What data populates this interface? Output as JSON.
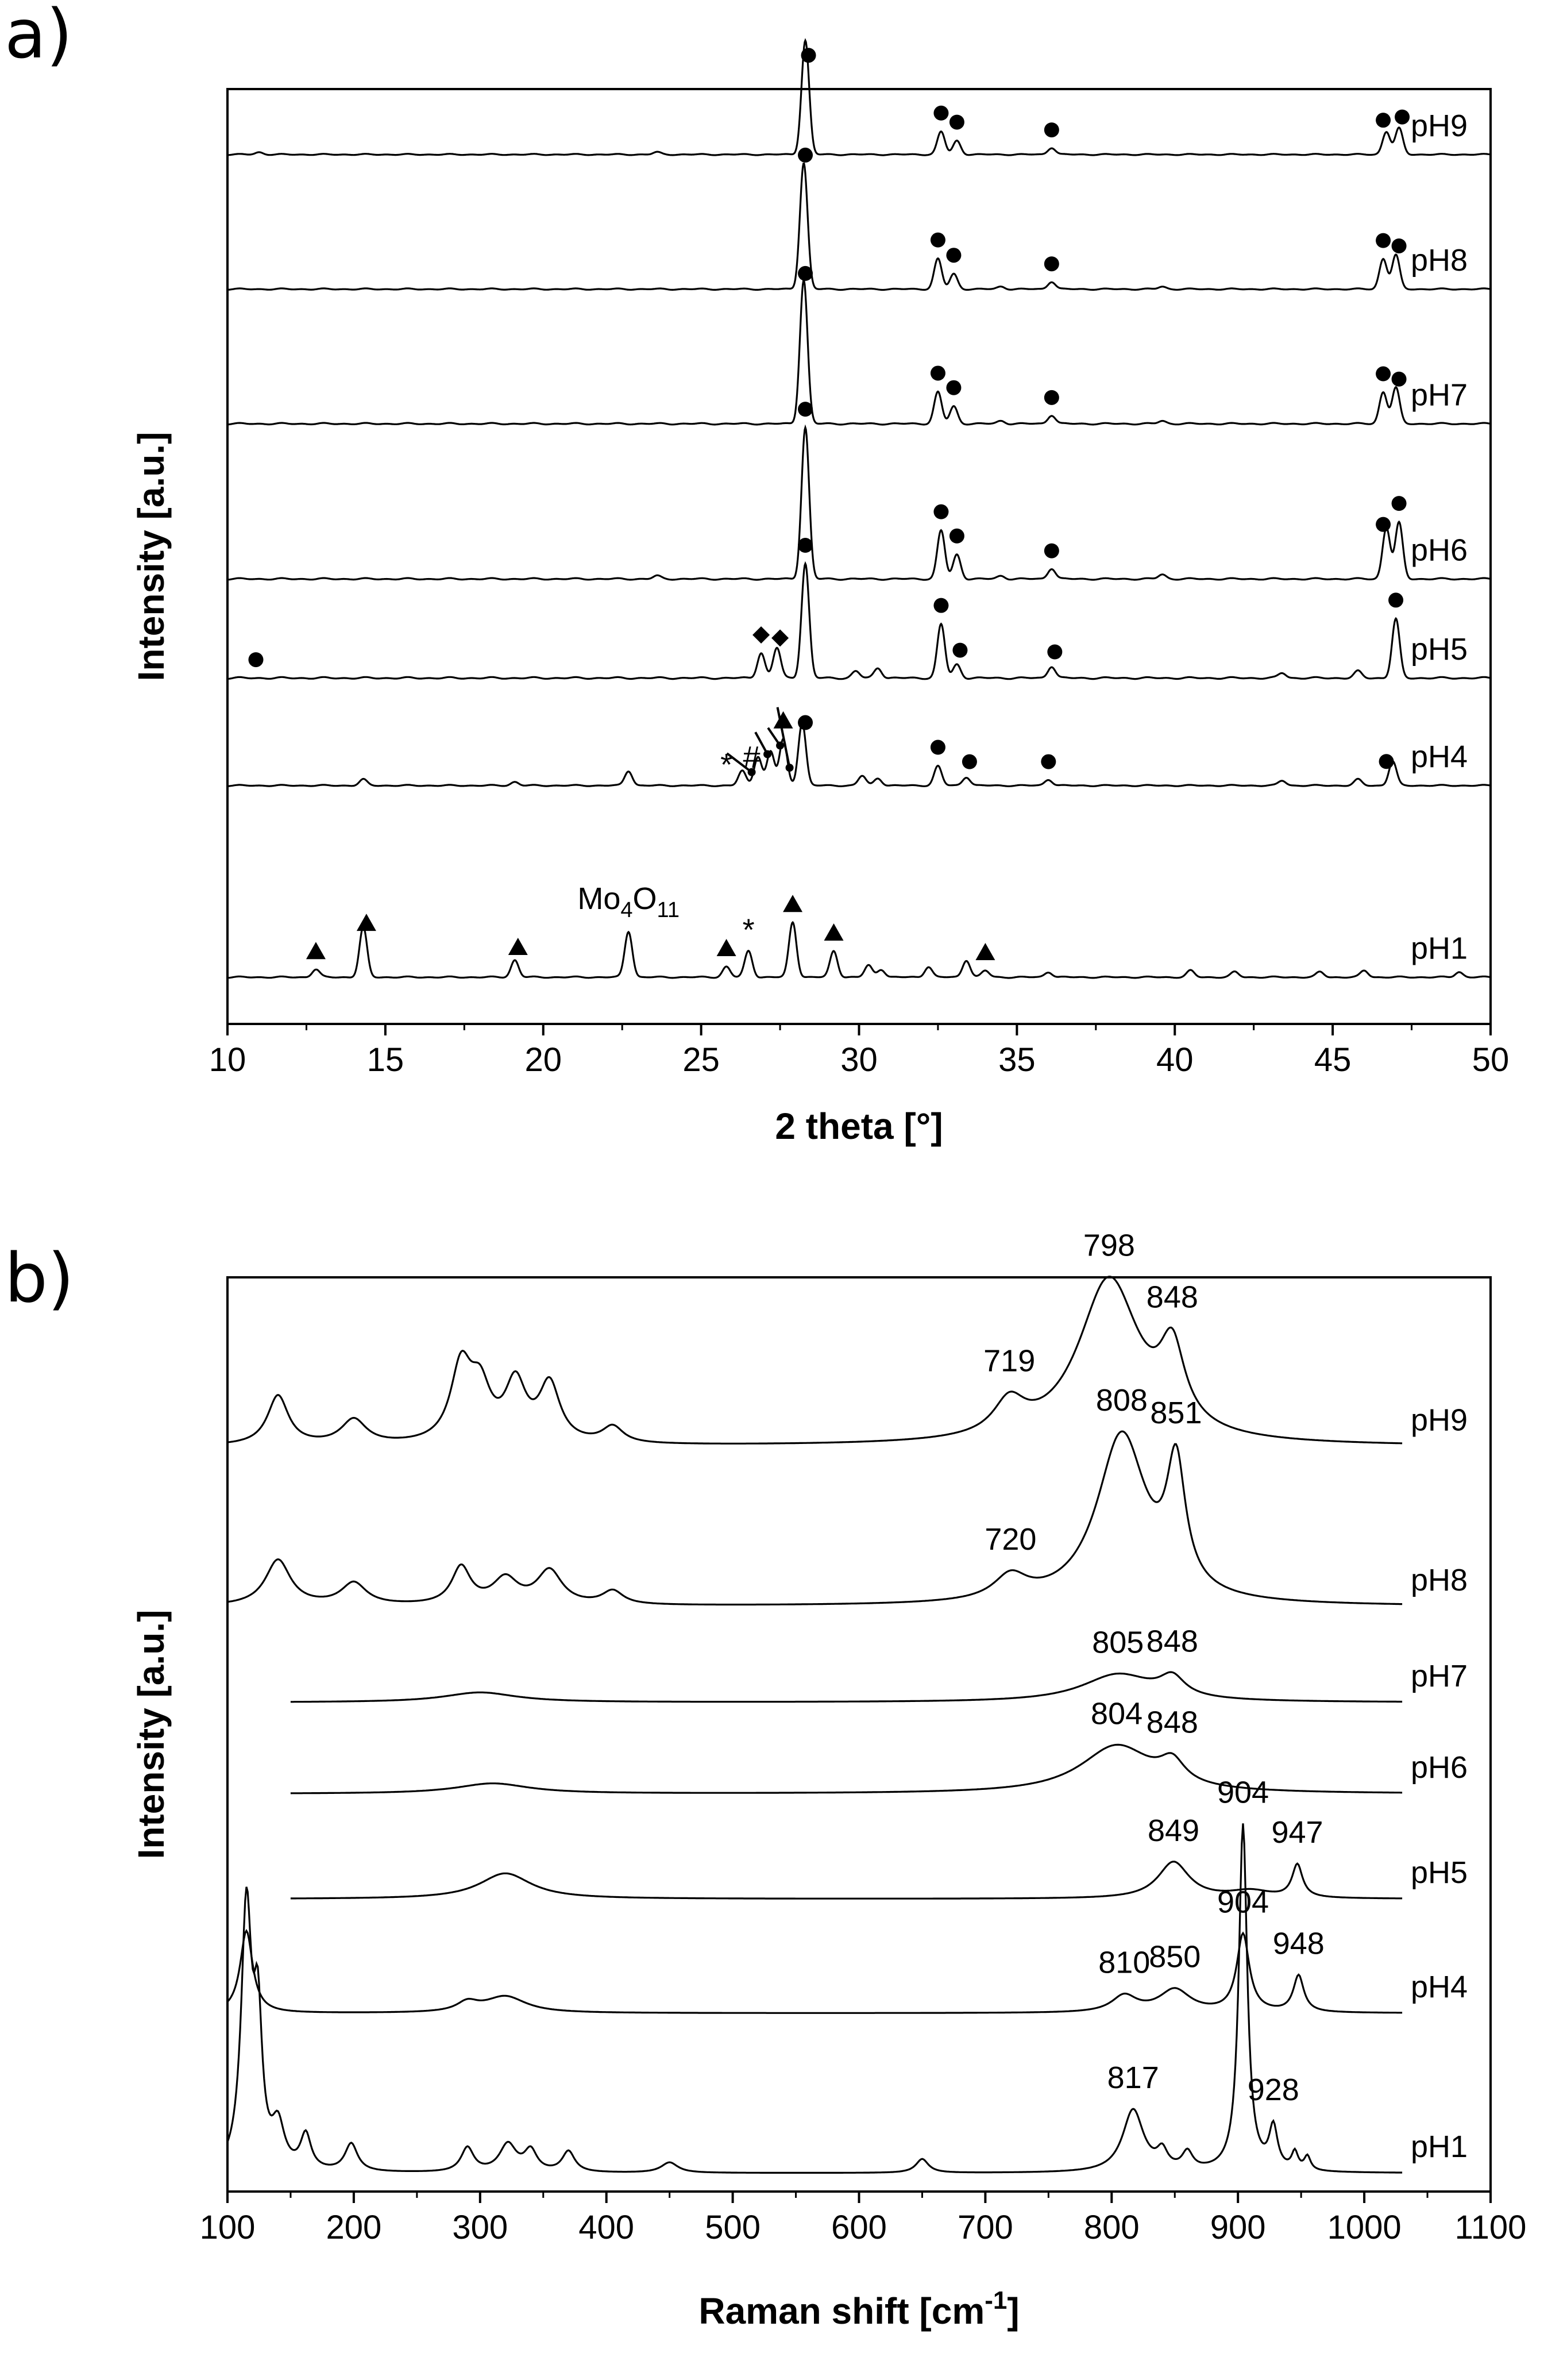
{
  "panels": {
    "a": {
      "letter": "a)"
    },
    "b": {
      "letter": "b)"
    }
  },
  "chart_data": [
    {
      "type": "line",
      "title": "",
      "xlabel": "2 theta [°]",
      "ylabel": "Intensity [a.u.]",
      "xlim": [
        10,
        50
      ],
      "xticks": [
        10,
        15,
        20,
        25,
        30,
        35,
        40,
        45,
        50
      ],
      "yticks": [],
      "annotation": {
        "text_main": "Mo",
        "sub1": "4",
        "text_mid": "O",
        "sub2": "11",
        "x": 22.7,
        "series": "pH1"
      },
      "peak_sigma": 0.12,
      "series": [
        {
          "name": "pH9",
          "label": "pH9",
          "offset": 0.93,
          "scale": 0.122,
          "peaks": [
            [
              28.3,
              1.0
            ],
            [
              32.6,
              0.2
            ],
            [
              33.1,
              0.12
            ],
            [
              36.1,
              0.06
            ],
            [
              46.7,
              0.2
            ],
            [
              47.1,
              0.23
            ],
            [
              11.0,
              0.02
            ],
            [
              23.6,
              0.02
            ]
          ]
        },
        {
          "name": "pH8",
          "label": "pH8",
          "offset": 0.786,
          "scale": 0.135,
          "peaks": [
            [
              28.25,
              1.0
            ],
            [
              32.5,
              0.24
            ],
            [
              33.0,
              0.12
            ],
            [
              36.1,
              0.06
            ],
            [
              46.6,
              0.24
            ],
            [
              47.0,
              0.27
            ],
            [
              39.6,
              0.02
            ],
            [
              34.5,
              0.02
            ]
          ]
        },
        {
          "name": "pH7",
          "label": "pH7",
          "offset": 0.642,
          "scale": 0.154,
          "peaks": [
            [
              28.25,
              1.0
            ],
            [
              32.5,
              0.22
            ],
            [
              33.0,
              0.12
            ],
            [
              36.1,
              0.06
            ],
            [
              46.6,
              0.22
            ],
            [
              47.0,
              0.25
            ],
            [
              39.6,
              0.02
            ],
            [
              34.5,
              0.02
            ]
          ]
        },
        {
          "name": "pH6",
          "label": "pH6",
          "offset": 0.476,
          "scale": 0.162,
          "peaks": [
            [
              28.3,
              1.0
            ],
            [
              32.6,
              0.32
            ],
            [
              33.1,
              0.16
            ],
            [
              36.1,
              0.07
            ],
            [
              46.7,
              0.34
            ],
            [
              47.1,
              0.37
            ],
            [
              39.6,
              0.03
            ],
            [
              34.5,
              0.02
            ],
            [
              23.6,
              0.02
            ]
          ]
        },
        {
          "name": "pH5",
          "label": "pH5",
          "offset": 0.37,
          "scale": 0.18,
          "peaks": [
            [
              28.3,
              0.68
            ],
            [
              32.6,
              0.32
            ],
            [
              33.1,
              0.08
            ],
            [
              36.1,
              0.07
            ],
            [
              47.0,
              0.35
            ],
            [
              26.9,
              0.15
            ],
            [
              27.4,
              0.18
            ],
            [
              30.6,
              0.06
            ],
            [
              29.9,
              0.04
            ],
            [
              43.4,
              0.03
            ],
            [
              45.8,
              0.04
            ]
          ]
        },
        {
          "name": "pH4",
          "label": "pH4",
          "offset": 0.255,
          "scale": 0.13,
          "peaks": [
            [
              28.2,
              0.52
            ],
            [
              27.6,
              0.38
            ],
            [
              27.2,
              0.28
            ],
            [
              26.8,
              0.24
            ],
            [
              26.3,
              0.12
            ],
            [
              22.7,
              0.12
            ],
            [
              32.5,
              0.16
            ],
            [
              33.4,
              0.07
            ],
            [
              36.0,
              0.05
            ],
            [
              46.9,
              0.2
            ],
            [
              14.3,
              0.05
            ],
            [
              19.1,
              0.03
            ],
            [
              30.1,
              0.08
            ],
            [
              30.6,
              0.06
            ],
            [
              43.4,
              0.04
            ],
            [
              45.8,
              0.05
            ]
          ]
        },
        {
          "name": "pH1",
          "label": "pH1",
          "offset": 0.05,
          "scale": 0.14,
          "peaks": [
            [
              12.8,
              0.06
            ],
            [
              14.3,
              0.38
            ],
            [
              19.1,
              0.13
            ],
            [
              22.7,
              0.35
            ],
            [
              25.8,
              0.08
            ],
            [
              26.5,
              0.2
            ],
            [
              27.9,
              0.42
            ],
            [
              29.2,
              0.2
            ],
            [
              30.3,
              0.09
            ],
            [
              30.7,
              0.06
            ],
            [
              32.2,
              0.08
            ],
            [
              33.4,
              0.13
            ],
            [
              34.0,
              0.05
            ],
            [
              36.0,
              0.04
            ],
            [
              40.5,
              0.05
            ],
            [
              41.9,
              0.04
            ],
            [
              44.6,
              0.04
            ],
            [
              46.0,
              0.05
            ],
            [
              49.0,
              0.04
            ]
          ]
        }
      ],
      "markers": [
        {
          "series": "pH9",
          "shape": "circle",
          "x": [
            28.4,
            32.6,
            33.1,
            36.1,
            46.6,
            47.2
          ]
        },
        {
          "series": "pH8",
          "shape": "circle",
          "x": [
            28.3,
            32.5,
            33.0,
            36.1,
            46.6,
            47.1
          ]
        },
        {
          "series": "pH7",
          "shape": "circle",
          "x": [
            28.3,
            32.5,
            33.0,
            36.1,
            46.6,
            47.1
          ]
        },
        {
          "series": "pH6",
          "shape": "circle",
          "x": [
            28.3,
            32.6,
            33.1,
            36.1,
            46.6,
            47.1
          ]
        },
        {
          "series": "pH5",
          "shape": "circle",
          "x": [
            10.9,
            28.3,
            32.6,
            33.2,
            36.2,
            47.0
          ]
        },
        {
          "series": "pH5",
          "shape": "diamond",
          "x": [
            26.9,
            27.5
          ]
        },
        {
          "series": "pH4",
          "shape": "circle",
          "x": [
            28.3,
            32.5,
            33.5,
            36.0,
            46.7
          ]
        },
        {
          "series": "pH4",
          "shape": "triangle",
          "x": [
            27.6
          ]
        },
        {
          "series": "pH4",
          "shape": "text",
          "text": "*",
          "x": [
            25.8
          ]
        },
        {
          "series": "pH4",
          "shape": "text",
          "text": "#",
          "x": [
            26.6
          ]
        },
        {
          "series": "pH1",
          "shape": "triangle",
          "x": [
            12.8,
            14.4,
            19.2,
            25.8,
            27.9,
            29.2,
            34.0
          ]
        },
        {
          "series": "pH1",
          "shape": "text",
          "text": "*",
          "x": [
            26.5
          ]
        }
      ]
    },
    {
      "type": "line",
      "title": "",
      "xlabel": "Raman shift [cm",
      "xlabel_sup": "-1",
      "xlabel_end": "]",
      "ylabel": "Intensity [a.u.]",
      "xlim": [
        100,
        1100
      ],
      "xticks": [
        100,
        200,
        300,
        400,
        500,
        600,
        700,
        800,
        900,
        1000,
        1100
      ],
      "yticks": [],
      "series": [
        {
          "name": "pH9",
          "label": "pH9",
          "x_start": 100,
          "x_end": 1030,
          "offset": 0.815,
          "scale": 0.18,
          "peaks": [
            [
              798,
              1.0,
              30
            ],
            [
              848,
              0.45,
              12
            ],
            [
              719,
              0.2,
              15
            ],
            [
              140,
              0.3,
              10
            ],
            [
              200,
              0.15,
              12
            ],
            [
              285,
              0.45,
              10
            ],
            [
              300,
              0.3,
              10
            ],
            [
              328,
              0.35,
              10
            ],
            [
              355,
              0.35,
              10
            ],
            [
              405,
              0.1,
              10
            ]
          ]
        },
        {
          "name": "pH8",
          "label": "pH8",
          "x_start": 100,
          "x_end": 1030,
          "offset": 0.64,
          "scale": 0.185,
          "peaks": [
            [
              808,
              1.0,
              24
            ],
            [
              851,
              0.72,
              9
            ],
            [
              720,
              0.14,
              16
            ],
            [
              140,
              0.27,
              12
            ],
            [
              200,
              0.13,
              12
            ],
            [
              285,
              0.22,
              9
            ],
            [
              320,
              0.15,
              12
            ],
            [
              355,
              0.2,
              12
            ],
            [
              405,
              0.08,
              10
            ]
          ]
        },
        {
          "name": "pH7",
          "label": "pH7",
          "x_start": 150,
          "x_end": 1030,
          "offset": 0.535,
          "scale": 0.06,
          "peaks": [
            [
              805,
              0.5,
              35
            ],
            [
              848,
              0.35,
              12
            ],
            [
              300,
              0.18,
              35
            ]
          ]
        },
        {
          "name": "pH6",
          "label": "pH6",
          "x_start": 150,
          "x_end": 1030,
          "offset": 0.435,
          "scale": 0.08,
          "peaks": [
            [
              804,
              0.65,
              35
            ],
            [
              848,
              0.3,
              12
            ],
            [
              310,
              0.14,
              35
            ]
          ]
        },
        {
          "name": "pH5",
          "label": "pH5",
          "x_start": 150,
          "x_end": 1030,
          "offset": 0.32,
          "scale": 0.08,
          "peaks": [
            [
              849,
              0.5,
              15
            ],
            [
              947,
              0.45,
              5
            ],
            [
              320,
              0.35,
              25
            ],
            [
              910,
              0.1,
              20
            ]
          ]
        },
        {
          "name": "pH4",
          "label": "pH4",
          "x_start": 100,
          "x_end": 1030,
          "offset": 0.195,
          "scale": 0.1,
          "peaks": [
            [
              115,
              0.9,
              6
            ],
            [
              904,
              0.85,
              6
            ],
            [
              948,
              0.4,
              5
            ],
            [
              850,
              0.25,
              15
            ],
            [
              810,
              0.18,
              12
            ],
            [
              320,
              0.18,
              20
            ],
            [
              290,
              0.1,
              10
            ]
          ]
        },
        {
          "name": "pH1",
          "label": "pH1",
          "x_start": 100,
          "x_end": 1030,
          "offset": 0.02,
          "scale": 0.38,
          "peaks": [
            [
              115,
              0.75,
              5
            ],
            [
              124,
              0.4,
              4
            ],
            [
              140,
              0.12,
              6
            ],
            [
              162,
              0.1,
              5
            ],
            [
              198,
              0.08,
              6
            ],
            [
              290,
              0.07,
              6
            ],
            [
              322,
              0.08,
              8
            ],
            [
              340,
              0.06,
              6
            ],
            [
              370,
              0.06,
              6
            ],
            [
              450,
              0.03,
              8
            ],
            [
              650,
              0.04,
              6
            ],
            [
              817,
              0.18,
              10
            ],
            [
              840,
              0.05,
              5
            ],
            [
              860,
              0.05,
              5
            ],
            [
              904,
              1.0,
              4
            ],
            [
              928,
              0.12,
              4
            ],
            [
              945,
              0.05,
              3
            ],
            [
              955,
              0.04,
              3
            ]
          ]
        }
      ],
      "peak_labels": [
        {
          "series": "pH9",
          "texts": [
            "719",
            "798",
            "848"
          ],
          "x": [
            719,
            798,
            848
          ]
        },
        {
          "series": "pH8",
          "texts": [
            "720",
            "808",
            "851"
          ],
          "x": [
            720,
            808,
            851
          ]
        },
        {
          "series": "pH7",
          "texts": [
            "805",
            "848"
          ],
          "x": [
            805,
            848
          ]
        },
        {
          "series": "pH6",
          "texts": [
            "804",
            "848"
          ],
          "x": [
            804,
            848
          ]
        },
        {
          "series": "pH5",
          "texts": [
            "849",
            "947"
          ],
          "x": [
            849,
            947
          ]
        },
        {
          "series": "pH4",
          "texts": [
            "810",
            "850",
            "904",
            "948"
          ],
          "x": [
            810,
            850,
            904,
            948
          ]
        },
        {
          "series": "pH1",
          "texts": [
            "817",
            "904",
            "928"
          ],
          "x": [
            817,
            904,
            928
          ]
        }
      ]
    }
  ]
}
